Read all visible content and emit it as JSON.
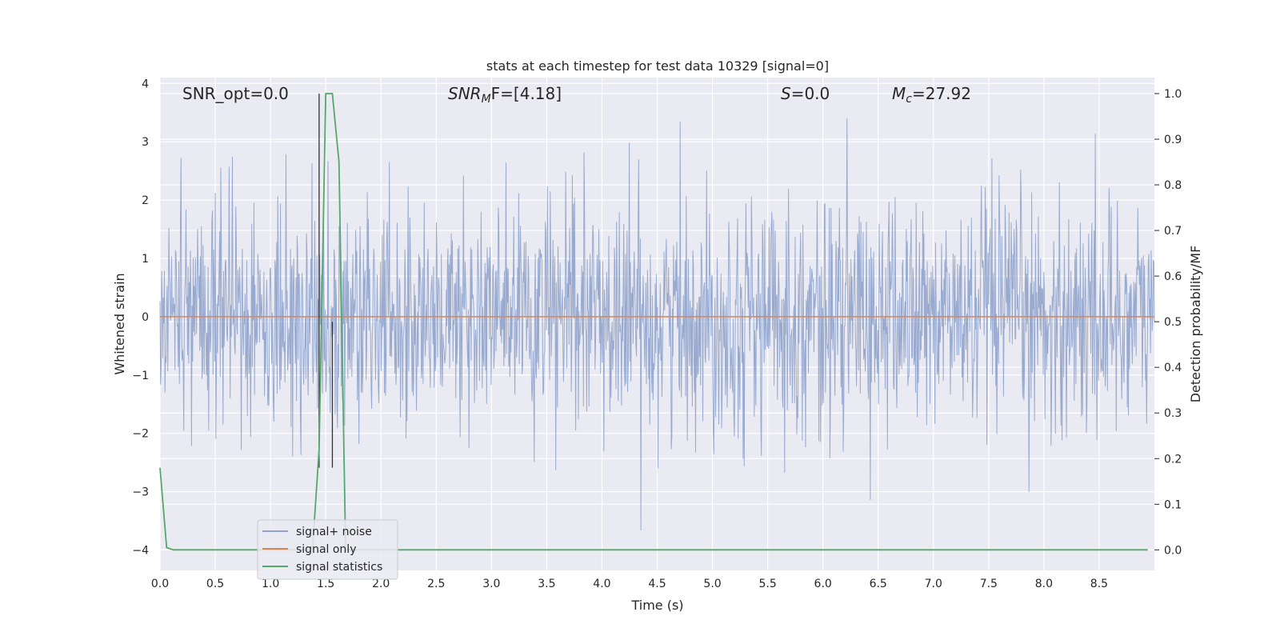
{
  "chart_data": {
    "type": "line",
    "title": "stats at each timestep for test data 10329 [signal=0]",
    "xlabel": "Time (s)",
    "ylabel_left": "Whitened strain",
    "ylabel_right": "Detection probability/MF",
    "xlim": [
      0,
      9.0
    ],
    "ylim_left": [
      -4.35,
      4.1
    ],
    "ylim_right": [
      -0.045,
      1.035
    ],
    "xticks": [
      "0.0",
      "0.5",
      "1.0",
      "1.5",
      "2.0",
      "2.5",
      "3.0",
      "3.5",
      "4.0",
      "4.5",
      "5.0",
      "5.5",
      "6.0",
      "6.5",
      "7.0",
      "7.5",
      "8.0",
      "8.5"
    ],
    "yticks_left": [
      "4",
      "3",
      "2",
      "1",
      "0",
      "−1",
      "−2",
      "−3",
      "−4"
    ],
    "yticks_right": [
      "1.0",
      "0.9",
      "0.8",
      "0.7",
      "0.6",
      "0.5",
      "0.4",
      "0.3",
      "0.2",
      "0.1",
      "0.0"
    ],
    "grid": true,
    "legend_position": "lower-left",
    "annotations": {
      "snr_opt": "SNR_opt=0.0",
      "snr_mf_base": "SNR",
      "snr_mf_sub": "M",
      "snr_mf_rest": "F=[4.18]",
      "s_italic": "S",
      "s_value": "=0.0",
      "mc_base": "M",
      "mc_sub": "c",
      "mc_value": "=27.92"
    },
    "series": [
      {
        "name": "signal+ noise",
        "axis": "left",
        "color": "#8fa3cc",
        "description_values": "white noise, std approx 1.0, peaks to about +3.8 and -4.0",
        "std": 1.0,
        "sample_count": 1800
      },
      {
        "name": "signal only",
        "axis": "left",
        "color": "#dd8452",
        "x": [
          0.0,
          9.0
        ],
        "y": [
          0.0,
          0.0
        ]
      },
      {
        "name": "signal statistics",
        "axis": "right",
        "color": "#55a868",
        "x": [
          0.0,
          0.06,
          0.12,
          0.5,
          1.0,
          1.38,
          1.44,
          1.5,
          1.56,
          1.62,
          1.68,
          1.74,
          2.0,
          3.0,
          4.0,
          5.0,
          6.0,
          7.0,
          8.0,
          8.94
        ],
        "y": [
          0.18,
          0.005,
          0.0,
          0.0,
          0.0,
          0.0,
          0.22,
          1.0,
          1.0,
          0.85,
          0.0,
          0.0,
          0.0,
          0.0,
          0.0,
          0.0,
          0.0,
          0.0,
          0.0,
          0.0
        ]
      }
    ],
    "vertical_markers": [
      {
        "x": 1.44,
        "y_from": 0.18,
        "y_to": 1.0,
        "axis": "right",
        "color": "#333333"
      },
      {
        "x": 1.56,
        "y_from": 0.18,
        "y_to": 0.5,
        "axis": "right",
        "color": "#333333"
      }
    ],
    "colors": {
      "plot_background": "#eaeaf2",
      "grid": "#ffffff"
    }
  }
}
